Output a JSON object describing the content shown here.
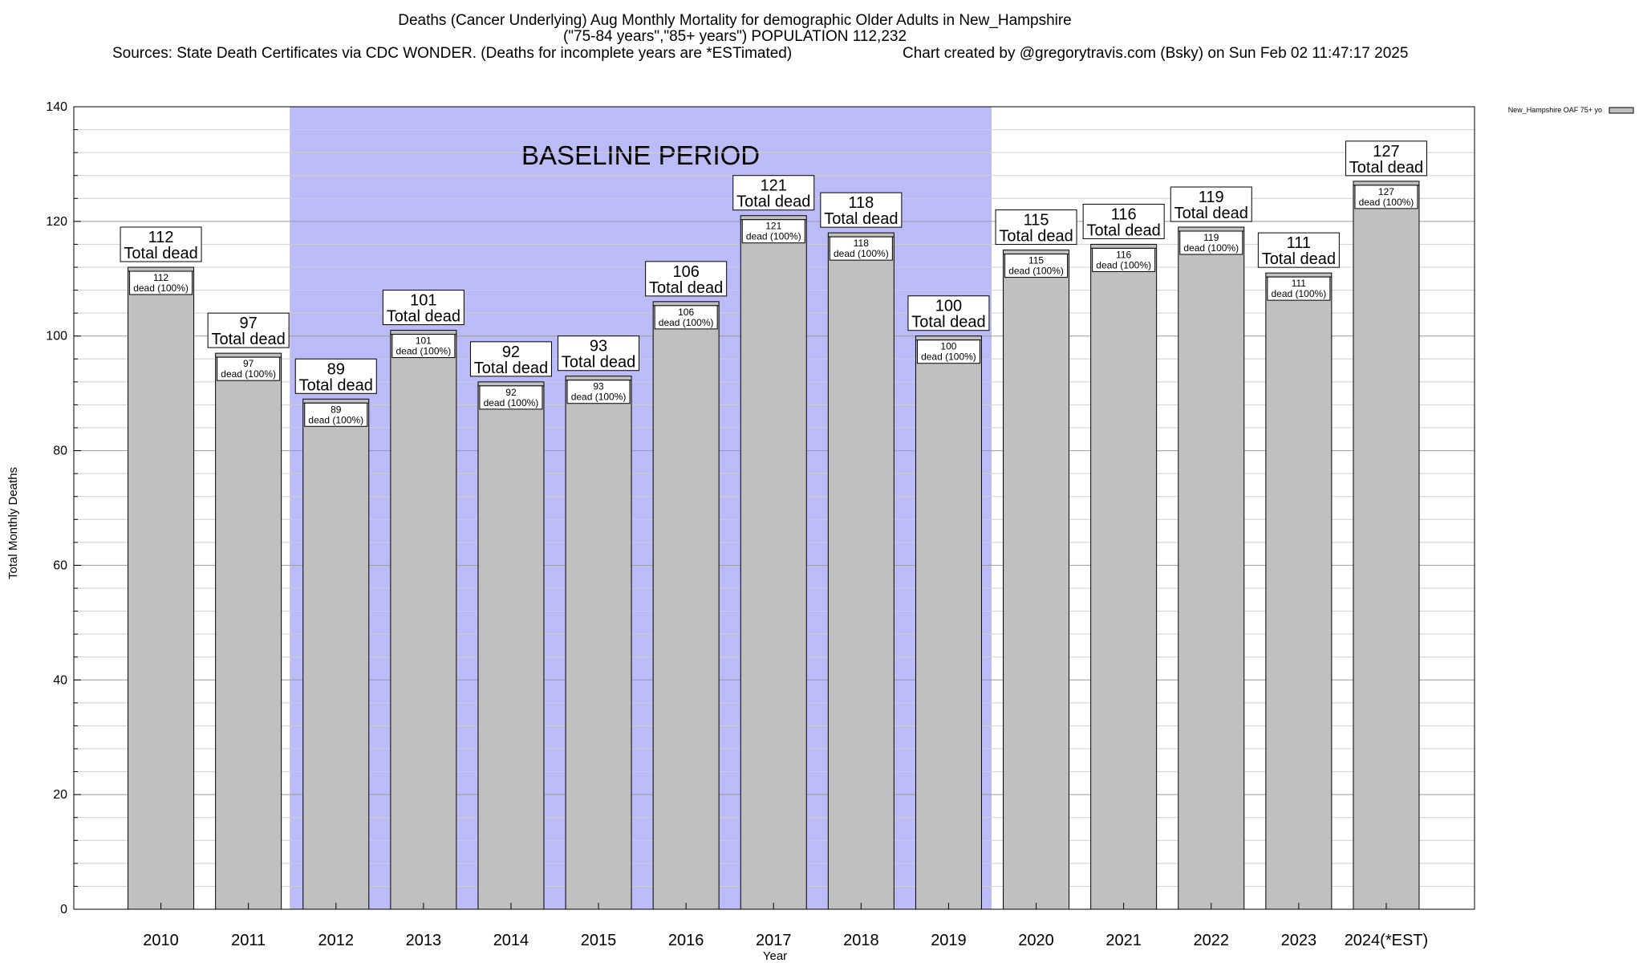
{
  "chart_data": {
    "type": "bar",
    "title_lines": [
      "Deaths (Cancer Underlying) Aug Monthly Mortality for demographic Older Adults in New_Hampshire",
      "(\"75-84 years\",\"85+ years\") POPULATION 112,232"
    ],
    "sources_line": "Sources: State Death Certificates via CDC WONDER. (Deaths for incomplete years are *ESTimated)",
    "credit_line": "Chart created by @gregorytravis.com (Bsky) on Sun Feb 02 11:47:17 2025",
    "xlabel": "Year",
    "ylabel": "Total Monthly Deaths",
    "ylim": [
      0,
      140
    ],
    "yticks": [
      0,
      20,
      40,
      60,
      80,
      100,
      120,
      140
    ],
    "categories": [
      "2010",
      "2011",
      "2012",
      "2013",
      "2014",
      "2015",
      "2016",
      "2017",
      "2018",
      "2019",
      "2020",
      "2021",
      "2022",
      "2023",
      "2024(*EST)"
    ],
    "series": [
      {
        "name": "New_Hampshire OAF 75+ yo",
        "values": [
          112,
          97,
          89,
          101,
          92,
          93,
          106,
          121,
          118,
          100,
          115,
          116,
          119,
          111,
          127
        ]
      }
    ],
    "total_label": "Total dead",
    "inner_label": "dead (100%)",
    "baseline_period": {
      "label": "BASELINE PERIOD",
      "from": "2012",
      "to": "2019",
      "color": "#bbbbf8"
    },
    "grid": true,
    "legend_position": "top-right",
    "colors": {
      "bar_fill": "#c0c0c0",
      "bar_stroke": "#000000",
      "grid": "#c8c8c8",
      "shade": "#bbbbf8"
    }
  }
}
